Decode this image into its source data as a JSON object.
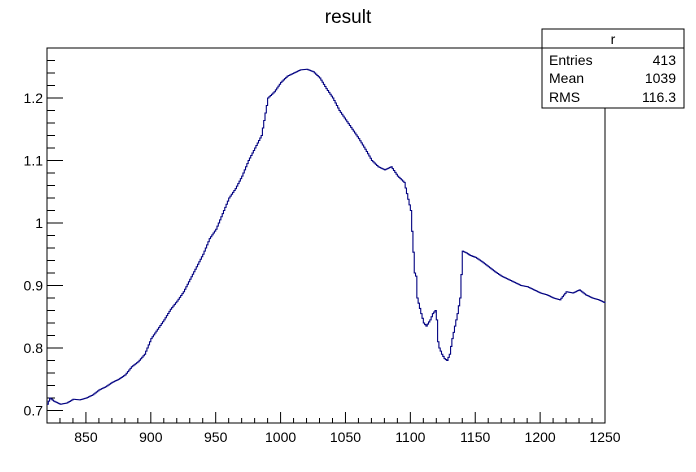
{
  "chart_data": {
    "type": "line",
    "title": "result",
    "xlabel": "",
    "ylabel": "",
    "xlim": [
      820,
      1250
    ],
    "ylim": [
      0.68,
      1.28
    ],
    "x_ticks": [
      850,
      900,
      950,
      1000,
      1050,
      1100,
      1150,
      1200,
      1250
    ],
    "y_ticks": [
      0.7,
      0.8,
      0.9,
      1,
      1.1,
      1.2
    ],
    "x_tick_labels": [
      "850",
      "900",
      "950",
      "1000",
      "1050",
      "1100",
      "1150",
      "1200",
      "1250"
    ],
    "y_tick_labels": [
      "0.7",
      "0.8",
      "0.9",
      "1",
      "1.1",
      "1.2"
    ],
    "grid": false,
    "line_color": "#000080",
    "series": [
      {
        "step_width": 1,
        "x": [
          820,
          822,
          825,
          830,
          835,
          840,
          845,
          850,
          855,
          860,
          865,
          870,
          875,
          880,
          885,
          890,
          895,
          900,
          905,
          910,
          915,
          920,
          925,
          930,
          935,
          940,
          945,
          950,
          955,
          960,
          965,
          970,
          975,
          980,
          985,
          990,
          995,
          1000,
          1005,
          1010,
          1015,
          1020,
          1025,
          1030,
          1035,
          1040,
          1045,
          1050,
          1055,
          1060,
          1065,
          1070,
          1075,
          1080,
          1085,
          1090,
          1095,
          1100,
          1103,
          1104,
          1105,
          1108,
          1110,
          1112,
          1115,
          1117,
          1119,
          1120,
          1121,
          1122,
          1124,
          1126,
          1128,
          1130,
          1132,
          1134,
          1136,
          1138,
          1140,
          1143,
          1146,
          1150,
          1155,
          1160,
          1165,
          1170,
          1175,
          1180,
          1185,
          1190,
          1195,
          1200,
          1205,
          1210,
          1215,
          1220,
          1225,
          1230,
          1235,
          1240,
          1245,
          1250
        ],
        "y": [
          0.71,
          0.72,
          0.715,
          0.71,
          0.712,
          0.718,
          0.717,
          0.72,
          0.725,
          0.733,
          0.738,
          0.745,
          0.75,
          0.757,
          0.77,
          0.778,
          0.79,
          0.815,
          0.83,
          0.845,
          0.862,
          0.875,
          0.89,
          0.91,
          0.93,
          0.95,
          0.975,
          0.99,
          1.015,
          1.04,
          1.055,
          1.075,
          1.1,
          1.12,
          1.14,
          1.2,
          1.21,
          1.225,
          1.235,
          1.24,
          1.245,
          1.246,
          1.242,
          1.232,
          1.215,
          1.2,
          1.18,
          1.165,
          1.15,
          1.135,
          1.118,
          1.1,
          1.09,
          1.085,
          1.09,
          1.075,
          1.065,
          1.02,
          0.92,
          0.915,
          0.88,
          0.855,
          0.84,
          0.835,
          0.845,
          0.855,
          0.86,
          0.845,
          0.81,
          0.8,
          0.79,
          0.783,
          0.78,
          0.79,
          0.815,
          0.835,
          0.855,
          0.88,
          0.955,
          0.952,
          0.948,
          0.945,
          0.938,
          0.93,
          0.922,
          0.915,
          0.91,
          0.905,
          0.9,
          0.898,
          0.893,
          0.888,
          0.885,
          0.88,
          0.877,
          0.89,
          0.888,
          0.893,
          0.885,
          0.88,
          0.877,
          0.872
        ]
      }
    ],
    "stats_box": {
      "title": "r",
      "rows": [
        {
          "label": "Entries",
          "value": "413"
        },
        {
          "label": "Mean",
          "value": "1039"
        },
        {
          "label": "RMS",
          "value": "116.3"
        }
      ]
    }
  }
}
